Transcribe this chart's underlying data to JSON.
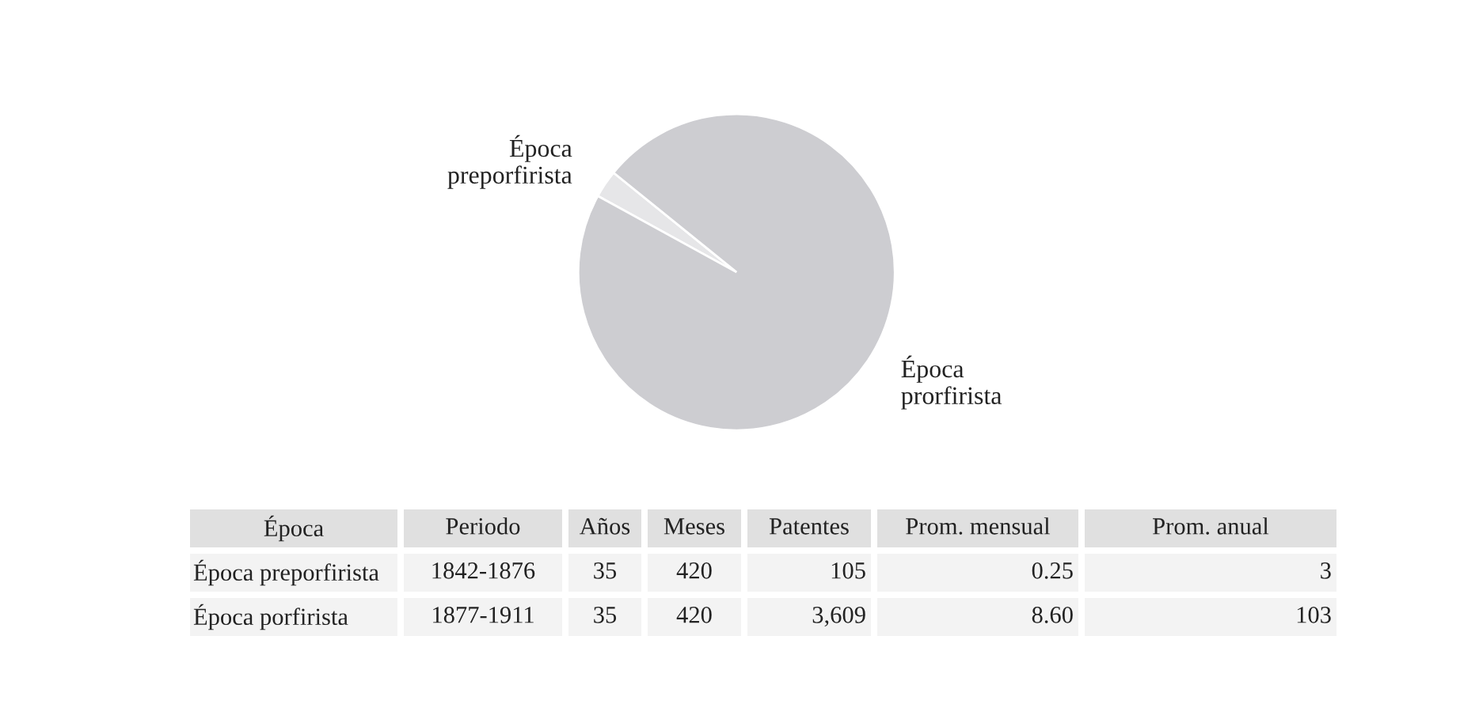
{
  "chart_data": {
    "type": "pie",
    "categories": [
      "Época\npreporfirista",
      "Época\nprorfirista"
    ],
    "values": [
      2.83,
      97.17
    ],
    "colors": [
      "#e6e6e8",
      "#cdcdd1"
    ],
    "annotations": [
      "Época",
      "Periodo",
      "Años",
      "Meses",
      "Patentes",
      "Prom. mensual",
      "Prom. anual",
      "Época preporfirista",
      "1842-1876",
      "35",
      "420",
      "105",
      "0.25",
      "3",
      "Época porfirista",
      "1877-1911",
      "35",
      "420",
      "3,609",
      "8.60",
      "103"
    ]
  }
}
